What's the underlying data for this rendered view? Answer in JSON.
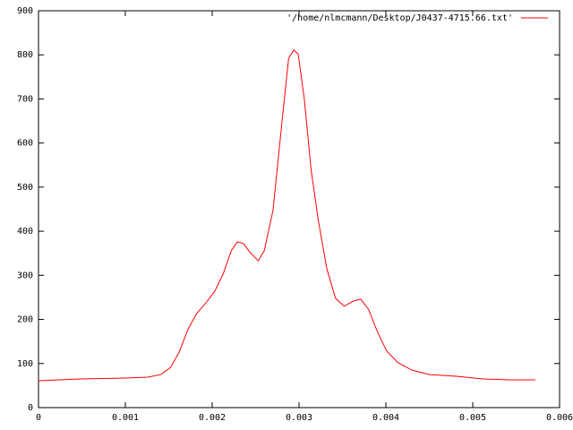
{
  "chart_data": {
    "type": "line",
    "x": [
      0,
      0.00048,
      0.001,
      0.00126,
      0.00141,
      0.00152,
      0.00162,
      0.00172,
      0.00182,
      0.00193,
      0.00203,
      0.00213,
      0.00222,
      0.00229,
      0.00236,
      0.00244,
      0.00253,
      0.0026,
      0.0027,
      0.00281,
      0.00288,
      0.00294,
      0.00299,
      0.00306,
      0.00314,
      0.00322,
      0.00332,
      0.00342,
      0.00352,
      0.00363,
      0.00371,
      0.0038,
      0.0039,
      0.00401,
      0.00414,
      0.0043,
      0.0045,
      0.00481,
      0.00512,
      0.00543,
      0.00572
    ],
    "series": [
      {
        "name": "'/home/nlmcmann/Desktop/J0437-4715.66.txt'",
        "color": "#ff0000",
        "values": [
          61,
          65,
          67,
          69,
          75,
          91,
          126,
          177,
          213,
          238,
          264,
          305,
          356,
          376,
          372,
          351,
          333,
          356,
          447,
          660,
          792,
          811,
          802,
          701,
          538,
          427,
          315,
          248,
          230,
          242,
          246,
          223,
          173,
          128,
          102,
          85,
          75,
          71,
          65,
          63,
          63
        ]
      }
    ],
    "xlim": [
      0,
      0.006
    ],
    "xticks": [
      0,
      0.001,
      0.002,
      0.003,
      0.004,
      0.005,
      0.006
    ],
    "ylim": [
      0,
      900
    ],
    "yticks": [
      0,
      100,
      200,
      300,
      400,
      500,
      600,
      700,
      800,
      900
    ],
    "legend": "top-right",
    "grid": false
  }
}
